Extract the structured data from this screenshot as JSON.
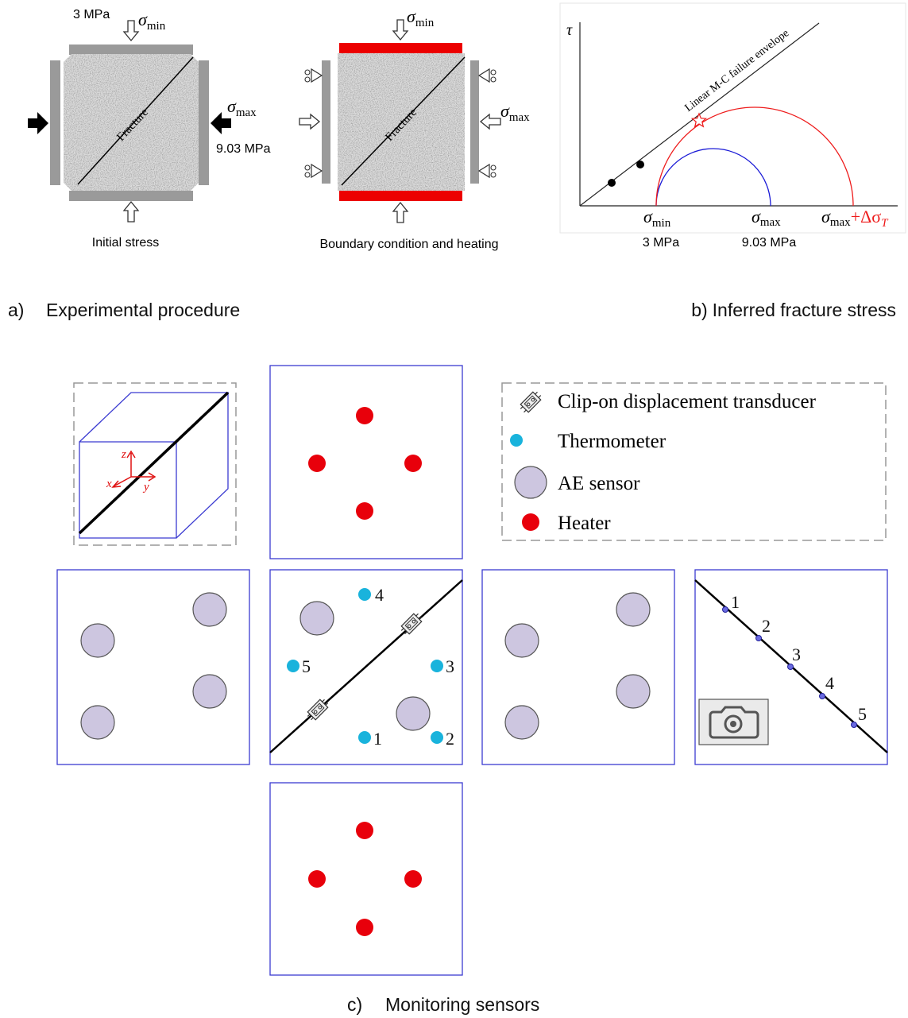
{
  "panel_a": {
    "label": "a)",
    "title": "Experimental procedure",
    "initial": {
      "min_stress": "3 MPa",
      "sigma_min": {
        "symbol": "σ",
        "sub": "min"
      },
      "sigma_max": {
        "symbol": "σ",
        "sub": "max"
      },
      "max_stress": "9.03 MPa",
      "fracture": "Fracture",
      "caption": "Initial stress"
    },
    "heating": {
      "sigma_min": {
        "symbol": "σ",
        "sub": "min"
      },
      "sigma_max": {
        "symbol": "σ",
        "sub": "max"
      },
      "fracture": "Fracture",
      "caption": "Boundary condition and heating"
    }
  },
  "panel_b": {
    "label": "b)",
    "title": "Inferred fracture stress",
    "y_axis": "τ",
    "envelope": "Linear M-C failure envelope",
    "sigma_min": {
      "symbol": "σ",
      "sub": "min"
    },
    "sigma_max": {
      "symbol": "σ",
      "sub": "max"
    },
    "sigma_heated": {
      "symbol": "σ",
      "sub": "max",
      "plus": "+Δσ",
      "plus_sub": "T"
    },
    "min_stress": "3 MPa",
    "max_stress": "9.03 MPa"
  },
  "panel_c": {
    "label": "c)",
    "title": "Monitoring sensors",
    "axes": {
      "x": "x",
      "y": "y",
      "z": "z"
    },
    "legend": [
      "Clip-on displacement transducer",
      "Thermometer",
      "AE sensor",
      "Heater"
    ],
    "thermometers": [
      "1",
      "2",
      "3",
      "4",
      "5"
    ],
    "camera_points": [
      "1",
      "2",
      "3",
      "4",
      "5"
    ]
  }
}
